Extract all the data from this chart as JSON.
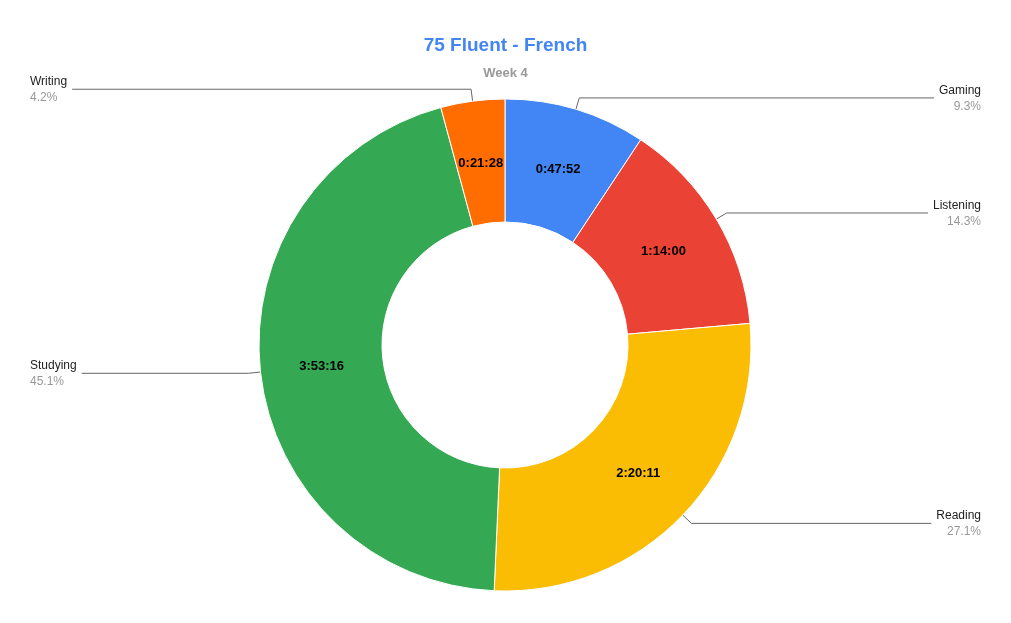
{
  "chart_data": {
    "type": "donut",
    "title": "75 Fluent - French",
    "subtitle": "Week 4",
    "categories": [
      "Gaming",
      "Listening",
      "Reading",
      "Studying",
      "Writing"
    ],
    "values": [
      9.3,
      14.3,
      27.1,
      45.1,
      4.2
    ],
    "colors": [
      "#4285f4",
      "#ea4335",
      "#fbbc04",
      "#34a853",
      "#ff6d01"
    ],
    "value_labels": [
      "9.3%",
      "14.3%",
      "27.1%",
      "45.1%",
      "4.2%"
    ],
    "annotations": [
      {
        "text": "0:47:52",
        "x": "Gaming"
      },
      {
        "text": "1:14:00",
        "x": "Listening"
      },
      {
        "text": "2:20:11",
        "x": "Reading"
      },
      {
        "text": "3:53:16",
        "x": "Studying"
      },
      {
        "text": "0:21:28",
        "x": "Writing"
      }
    ],
    "legend": false
  }
}
